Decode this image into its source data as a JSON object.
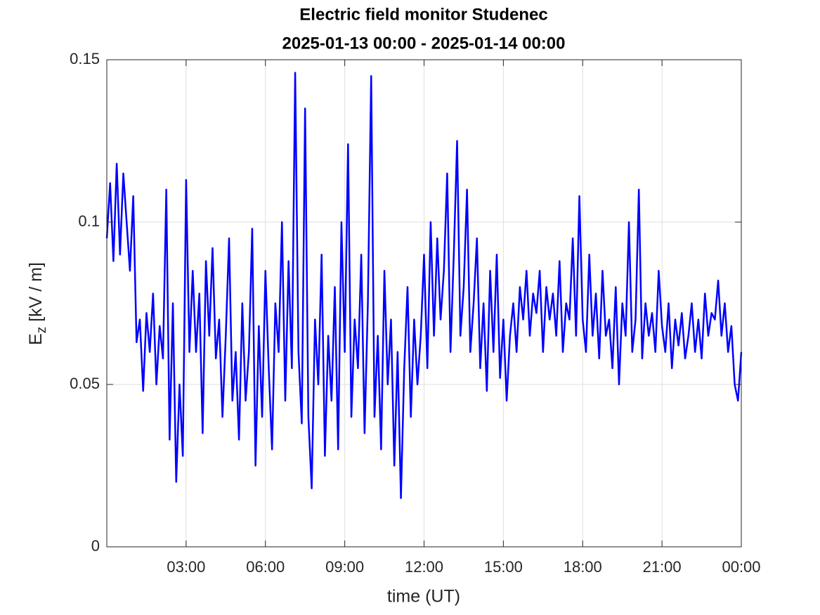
{
  "chart_data": {
    "type": "line",
    "title": "Electric field monitor Studenec",
    "subtitle": "2025-01-13 00:00 - 2025-01-14 00:00",
    "xlabel": "time (UT)",
    "ylabel": {
      "main": "E",
      "sub": "z",
      "rest": " [kV / m]"
    },
    "xlim": [
      0,
      24
    ],
    "xticks": [
      {
        "value": 3,
        "label": "03:00"
      },
      {
        "value": 6,
        "label": "06:00"
      },
      {
        "value": 9,
        "label": "09:00"
      },
      {
        "value": 12,
        "label": "12:00"
      },
      {
        "value": 15,
        "label": "15:00"
      },
      {
        "value": 18,
        "label": "18:00"
      },
      {
        "value": 21,
        "label": "21:00"
      },
      {
        "value": 24,
        "label": "00:00"
      }
    ],
    "ylim": [
      0,
      0.15
    ],
    "yticks": [
      0,
      0.05,
      {
        "value": 0.1,
        "label": "0.1"
      },
      0.15
    ],
    "grid": true,
    "x": [
      0,
      0.125,
      0.25,
      0.375,
      0.5,
      0.625,
      0.75,
      0.875,
      1,
      1.125,
      1.25,
      1.375,
      1.5,
      1.625,
      1.75,
      1.875,
      2,
      2.125,
      2.25,
      2.375,
      2.5,
      2.625,
      2.75,
      2.875,
      3,
      3.125,
      3.25,
      3.375,
      3.5,
      3.625,
      3.75,
      3.875,
      4,
      4.125,
      4.25,
      4.375,
      4.5,
      4.625,
      4.75,
      4.875,
      5,
      5.125,
      5.25,
      5.375,
      5.5,
      5.625,
      5.75,
      5.875,
      6,
      6.125,
      6.25,
      6.375,
      6.5,
      6.625,
      6.75,
      6.875,
      7,
      7.125,
      7.25,
      7.375,
      7.5,
      7.625,
      7.75,
      7.875,
      8,
      8.125,
      8.25,
      8.375,
      8.5,
      8.625,
      8.75,
      8.875,
      9,
      9.125,
      9.25,
      9.375,
      9.5,
      9.625,
      9.75,
      9.875,
      10,
      10.125,
      10.25,
      10.375,
      10.5,
      10.625,
      10.75,
      10.875,
      11,
      11.125,
      11.25,
      11.375,
      11.5,
      11.625,
      11.75,
      11.875,
      12,
      12.125,
      12.25,
      12.375,
      12.5,
      12.625,
      12.75,
      12.875,
      13,
      13.125,
      13.25,
      13.375,
      13.5,
      13.625,
      13.75,
      13.875,
      14,
      14.125,
      14.25,
      14.375,
      14.5,
      14.625,
      14.75,
      14.875,
      15,
      15.125,
      15.25,
      15.375,
      15.5,
      15.625,
      15.75,
      15.875,
      16,
      16.125,
      16.25,
      16.375,
      16.5,
      16.625,
      16.75,
      16.875,
      17,
      17.125,
      17.25,
      17.375,
      17.5,
      17.625,
      17.75,
      17.875,
      18,
      18.125,
      18.25,
      18.375,
      18.5,
      18.625,
      18.75,
      18.875,
      19,
      19.125,
      19.25,
      19.375,
      19.5,
      19.625,
      19.75,
      19.875,
      20,
      20.125,
      20.25,
      20.375,
      20.5,
      20.625,
      20.75,
      20.875,
      21,
      21.125,
      21.25,
      21.375,
      21.5,
      21.625,
      21.75,
      21.875,
      22,
      22.125,
      22.25,
      22.375,
      22.5,
      22.625,
      22.75,
      22.875,
      23,
      23.125,
      23.25,
      23.375,
      23.5,
      23.625,
      23.75,
      23.875,
      24
    ],
    "series": [
      {
        "color": "#0000ff",
        "values": [
          0.095,
          0.112,
          0.088,
          0.118,
          0.09,
          0.115,
          0.1,
          0.085,
          0.108,
          0.063,
          0.07,
          0.048,
          0.072,
          0.06,
          0.078,
          0.05,
          0.068,
          0.058,
          0.11,
          0.033,
          0.075,
          0.02,
          0.05,
          0.028,
          0.113,
          0.06,
          0.085,
          0.06,
          0.078,
          0.035,
          0.088,
          0.065,
          0.092,
          0.058,
          0.07,
          0.04,
          0.065,
          0.095,
          0.045,
          0.06,
          0.033,
          0.075,
          0.045,
          0.06,
          0.098,
          0.025,
          0.068,
          0.04,
          0.085,
          0.055,
          0.03,
          0.075,
          0.06,
          0.1,
          0.045,
          0.088,
          0.055,
          0.146,
          0.06,
          0.038,
          0.135,
          0.04,
          0.018,
          0.07,
          0.05,
          0.09,
          0.028,
          0.065,
          0.045,
          0.08,
          0.03,
          0.1,
          0.06,
          0.124,
          0.04,
          0.07,
          0.055,
          0.09,
          0.035,
          0.075,
          0.145,
          0.04,
          0.065,
          0.03,
          0.085,
          0.05,
          0.07,
          0.025,
          0.06,
          0.015,
          0.055,
          0.08,
          0.04,
          0.07,
          0.05,
          0.065,
          0.09,
          0.055,
          0.1,
          0.065,
          0.095,
          0.07,
          0.085,
          0.115,
          0.06,
          0.09,
          0.125,
          0.065,
          0.08,
          0.11,
          0.06,
          0.075,
          0.095,
          0.055,
          0.075,
          0.048,
          0.085,
          0.06,
          0.09,
          0.052,
          0.07,
          0.045,
          0.065,
          0.075,
          0.06,
          0.08,
          0.07,
          0.085,
          0.065,
          0.078,
          0.072,
          0.085,
          0.06,
          0.08,
          0.07,
          0.078,
          0.065,
          0.088,
          0.06,
          0.075,
          0.07,
          0.095,
          0.065,
          0.108,
          0.07,
          0.06,
          0.09,
          0.065,
          0.078,
          0.058,
          0.085,
          0.065,
          0.07,
          0.055,
          0.08,
          0.05,
          0.075,
          0.065,
          0.1,
          0.06,
          0.07,
          0.11,
          0.058,
          0.075,
          0.065,
          0.072,
          0.06,
          0.085,
          0.068,
          0.06,
          0.075,
          0.055,
          0.07,
          0.062,
          0.072,
          0.058,
          0.065,
          0.075,
          0.06,
          0.07,
          0.058,
          0.078,
          0.065,
          0.072,
          0.07,
          0.082,
          0.065,
          0.075,
          0.06,
          0.068,
          0.05,
          0.045,
          0.06
        ]
      }
    ]
  }
}
